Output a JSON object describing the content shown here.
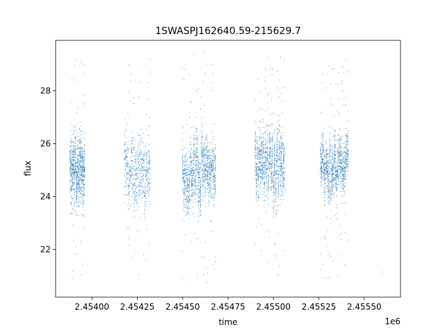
{
  "chart_data": {
    "type": "scatter",
    "title": "1SWASPJ162640.59-215629.7",
    "xlabel": "time",
    "ylabel": "flux",
    "x_offset_label": "1e6",
    "xlim": [
      2453800,
      2455700
    ],
    "ylim": [
      20.2,
      29.9
    ],
    "x_ticks": [
      2454000,
      2454250,
      2454500,
      2454750,
      2455000,
      2455250,
      2455500
    ],
    "x_tick_labels": [
      "2.45400",
      "2.45425",
      "2.45450",
      "2.45475",
      "2.45500",
      "2.45525",
      "2.45550"
    ],
    "y_ticks": [
      22,
      24,
      26,
      28
    ],
    "y_tick_labels": [
      "22",
      "24",
      "26",
      "28"
    ],
    "grid": false,
    "marker_color": "#1f77b4",
    "season_groups": [
      {
        "x_range": [
          2453880,
          2453960
        ],
        "y_center": 25.0,
        "y_spread": 0.9,
        "y_outlier_range": [
          20.8,
          29.5
        ],
        "points": 900
      },
      {
        "x_range": [
          2454180,
          2454320
        ],
        "y_center": 25.0,
        "y_spread": 1.0,
        "y_outlier_range": [
          20.6,
          29.3
        ],
        "points": 700
      },
      {
        "x_range": [
          2454500,
          2454680
        ],
        "y_center": 25.0,
        "y_spread": 0.9,
        "y_outlier_range": [
          20.6,
          29.6
        ],
        "points": 1400
      },
      {
        "x_range": [
          2454900,
          2455060
        ],
        "y_center": 25.1,
        "y_spread": 0.9,
        "y_outlier_range": [
          20.9,
          29.3
        ],
        "points": 1300
      },
      {
        "x_range": [
          2455260,
          2455410
        ],
        "y_center": 25.1,
        "y_spread": 0.8,
        "y_outlier_range": [
          20.8,
          29.2
        ],
        "points": 1200
      }
    ],
    "isolated_points": [
      {
        "x": 2455600,
        "y": 21.15
      },
      {
        "x": 2455600,
        "y": 21.05
      }
    ]
  }
}
